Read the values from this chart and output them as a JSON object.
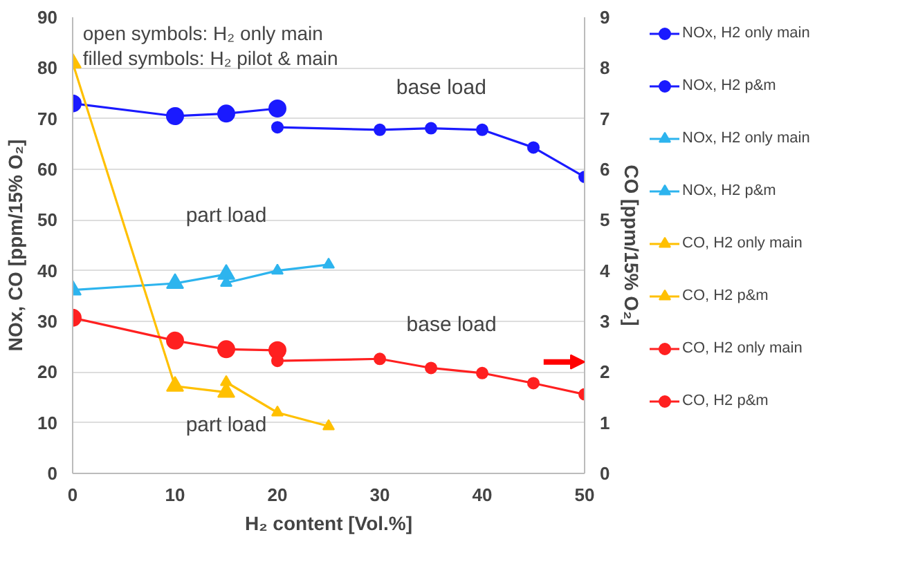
{
  "chart_data": {
    "type": "line",
    "xlabel": "H₂ content [Vol.%]",
    "ylabel": "NOx, CO [ppm/15% O₂]",
    "y2label": "CO [ppm/15% O₂]",
    "xlim": [
      0,
      50
    ],
    "xticks": [
      0,
      10,
      20,
      30,
      40,
      50
    ],
    "ylim": [
      0,
      90
    ],
    "yticks": [
      0,
      10,
      20,
      30,
      40,
      50,
      60,
      70,
      80,
      90
    ],
    "y2lim": [
      0,
      9
    ],
    "y2ticks": [
      0,
      1,
      2,
      3,
      4,
      5,
      6,
      7,
      8,
      9
    ],
    "grid": "y",
    "legend": "right",
    "line_style": "solid",
    "series": [
      {
        "name": "NOx, H2 only main",
        "color": "#1a1aff",
        "marker": "circle",
        "x": [
          0,
          10,
          15,
          20
        ],
        "values": [
          73,
          70.5,
          71,
          72
        ]
      },
      {
        "name": "NOx, H2 p&m",
        "color": "#1a1aff",
        "marker": "circle",
        "x": [
          20,
          30,
          35,
          40,
          45,
          50
        ],
        "values": [
          68.3,
          67.8,
          68.1,
          67.8,
          64.3,
          58.5
        ]
      },
      {
        "name": "NOx, H2 only main",
        "color": "#2db4ee",
        "marker": "triangle",
        "x": [
          0,
          10,
          15
        ],
        "values": [
          36.2,
          37.5,
          39.3
        ]
      },
      {
        "name": "NOx, H2 p&m",
        "color": "#2db4ee",
        "marker": "triangle",
        "x": [
          15,
          20,
          25
        ],
        "values": [
          37.6,
          40,
          41.2
        ]
      },
      {
        "name": "CO, H2 only main",
        "color": "#ffc000",
        "marker": "triangle",
        "axis": "y2",
        "x": [
          0,
          10,
          15
        ],
        "values": [
          8.1,
          1.72,
          1.6
        ]
      },
      {
        "name": "CO, H2 p&m",
        "color": "#ffc000",
        "marker": "triangle",
        "axis": "y2",
        "x": [
          15,
          20,
          25
        ],
        "values": [
          1.8,
          1.2,
          0.93
        ]
      },
      {
        "name": "CO, H2 only main",
        "color": "#ff2020",
        "marker": "circle",
        "axis": "y2",
        "x": [
          0,
          10,
          15,
          20
        ],
        "values": [
          3.07,
          2.62,
          2.45,
          2.43
        ]
      },
      {
        "name": "CO, H2 p&m",
        "color": "#ff2020",
        "marker": "circle",
        "axis": "y2",
        "x": [
          20,
          20,
          30,
          35,
          40,
          45,
          50
        ],
        "values": [
          2.38,
          2.22,
          2.26,
          2.08,
          1.98,
          1.78,
          1.56
        ]
      }
    ],
    "annotations": [
      "open symbols: H₂ only main",
      "filled symbols: H₂ pilot & main",
      "base load",
      "part load",
      "base load",
      "part load"
    ]
  }
}
